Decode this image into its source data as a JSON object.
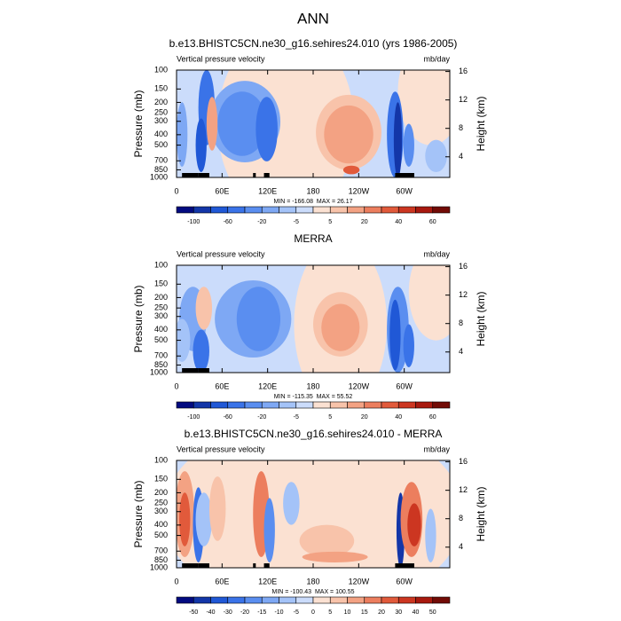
{
  "title": "ANN",
  "chart_data": [
    {
      "type": "contour",
      "title": "b.e13.BHISTC5CN.ne30_g16.sehires24.010 (yrs 1986-2005)",
      "left_label": "Vertical pressure velocity",
      "right_label": "mb/day",
      "ylabel": "Pressure (mb)",
      "y2label": "Height (km)",
      "stats": "MIN = -166.08  MAX = 26.17",
      "xlim": [
        0,
        360
      ],
      "xticks": [
        0,
        {
          "value": 60,
          "label": "60E"
        },
        {
          "value": 120,
          "label": "120E"
        },
        180,
        {
          "value": 240,
          "label": "120W"
        },
        {
          "value": 300,
          "label": "60W"
        }
      ],
      "ylim": [
        1000,
        100
      ],
      "yscale": "log",
      "yticks": [
        100,
        150,
        200,
        250,
        300,
        400,
        500,
        700,
        850,
        1000
      ],
      "y2lim": [
        1.1,
        16.2
      ],
      "y2ticks": [
        4,
        8,
        12,
        16
      ],
      "colorbar": {
        "ticks": [
          -100,
          -60,
          -20,
          -5,
          5,
          20,
          40,
          60
        ],
        "colors": [
          "#030b80",
          "#1336a8",
          "#2058d6",
          "#3a73e8",
          "#5a8ef0",
          "#7ea8f4",
          "#a4c3f8",
          "#cbdcfb",
          "#fbe1d2",
          "#f8c3aa",
          "#f3a283",
          "#ec7e5e",
          "#e15a3b",
          "#cc3621",
          "#a8190f",
          "#720b06"
        ]
      }
    },
    {
      "type": "contour",
      "title": "MERRA",
      "left_label": "Vertical pressure velocity",
      "right_label": "mb/day",
      "ylabel": "Pressure (mb)",
      "y2label": "Height (km)",
      "stats": "MIN = -115.35  MAX = 55.52",
      "xlim": [
        0,
        360
      ],
      "xticks": [
        0,
        {
          "value": 60,
          "label": "60E"
        },
        {
          "value": 120,
          "label": "120E"
        },
        180,
        {
          "value": 240,
          "label": "120W"
        },
        {
          "value": 300,
          "label": "60W"
        }
      ],
      "ylim": [
        1000,
        100
      ],
      "yscale": "log",
      "yticks": [
        100,
        150,
        200,
        250,
        300,
        400,
        500,
        700,
        850,
        1000
      ],
      "y2lim": [
        1.1,
        16.2
      ],
      "y2ticks": [
        4,
        8,
        12,
        16
      ],
      "colorbar": {
        "ticks": [
          -100,
          -60,
          -20,
          -5,
          5,
          20,
          40,
          60
        ],
        "colors": [
          "#030b80",
          "#1336a8",
          "#2058d6",
          "#3a73e8",
          "#5a8ef0",
          "#7ea8f4",
          "#a4c3f8",
          "#cbdcfb",
          "#fbe1d2",
          "#f8c3aa",
          "#f3a283",
          "#ec7e5e",
          "#e15a3b",
          "#cc3621",
          "#a8190f",
          "#720b06"
        ]
      }
    },
    {
      "type": "contour",
      "title": "b.e13.BHISTC5CN.ne30_g16.sehires24.010 - MERRA",
      "left_label": "Vertical pressure velocity",
      "right_label": "mb/day",
      "ylabel": "Pressure (mb)",
      "y2label": "Height (km)",
      "stats": "MIN = -100.43  MAX = 100.55",
      "xlim": [
        0,
        360
      ],
      "xticks": [
        0,
        {
          "value": 60,
          "label": "60E"
        },
        {
          "value": 120,
          "label": "120E"
        },
        180,
        {
          "value": 240,
          "label": "120W"
        },
        {
          "value": 300,
          "label": "60W"
        }
      ],
      "ylim": [
        1000,
        100
      ],
      "yscale": "log",
      "yticks": [
        100,
        150,
        200,
        250,
        300,
        400,
        500,
        700,
        850,
        1000
      ],
      "y2lim": [
        1.1,
        16.2
      ],
      "y2ticks": [
        4,
        8,
        12,
        16
      ],
      "colorbar": {
        "ticks": [
          -50,
          -40,
          -30,
          -20,
          -15,
          -10,
          -5,
          0,
          5,
          10,
          15,
          20,
          30,
          40,
          50
        ],
        "colors": [
          "#030b80",
          "#1336a8",
          "#2058d6",
          "#3a73e8",
          "#5a8ef0",
          "#7ea8f4",
          "#a4c3f8",
          "#cbdcfb",
          "#fbe1d2",
          "#f8c3aa",
          "#f3a283",
          "#ec7e5e",
          "#e15a3b",
          "#cc3621",
          "#a8190f",
          "#720b06"
        ]
      }
    }
  ]
}
